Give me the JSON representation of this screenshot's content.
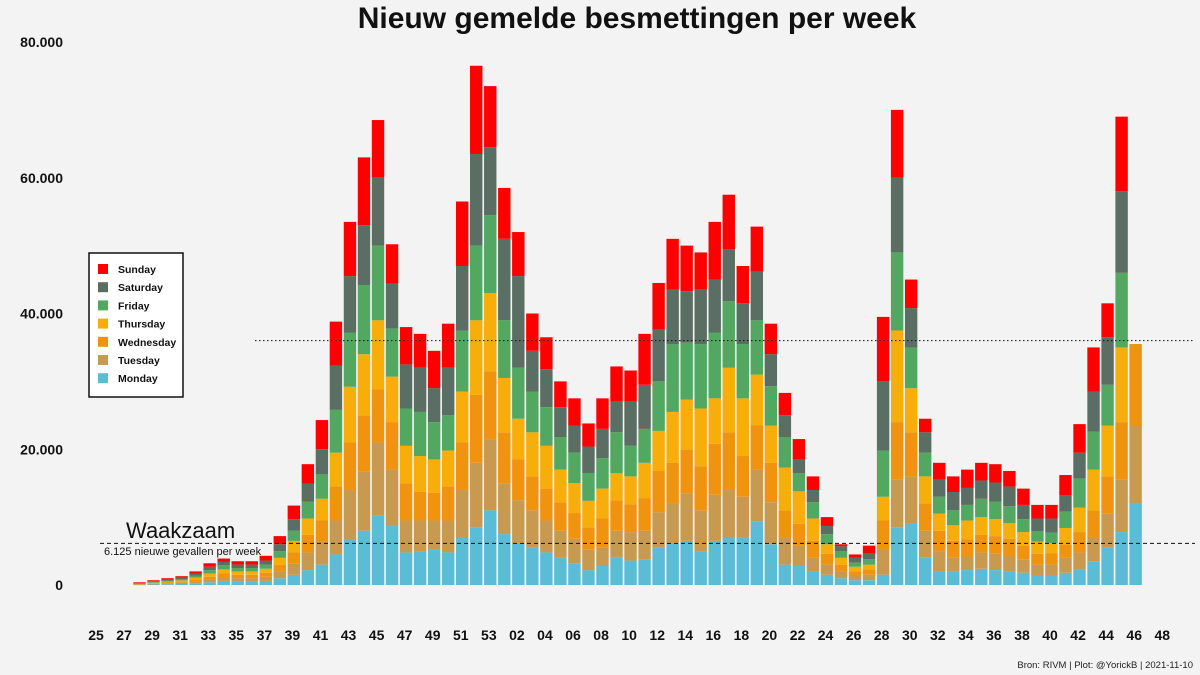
{
  "chart_data": {
    "type": "bar",
    "stacked": true,
    "title": "Nieuw gemelde besmettingen per week",
    "y_ticks": [
      {
        "value": 0,
        "label": "0"
      },
      {
        "value": 20000,
        "label": "20.000"
      },
      {
        "value": 40000,
        "label": "40.000"
      },
      {
        "value": 60000,
        "label": "60.000"
      },
      {
        "value": 80000,
        "label": "80.000"
      }
    ],
    "ylim": [
      0,
      80000
    ],
    "x_tick_labels": [
      "25",
      "27",
      "29",
      "31",
      "33",
      "35",
      "37",
      "39",
      "41",
      "43",
      "45",
      "47",
      "49",
      "51",
      "53",
      "02",
      "04",
      "06",
      "08",
      "10",
      "12",
      "14",
      "16",
      "18",
      "20",
      "22",
      "24",
      "26",
      "28",
      "30",
      "32",
      "34",
      "36",
      "38",
      "40",
      "42",
      "44",
      "46",
      "48"
    ],
    "bar_count": 75,
    "series_colors": {
      "Monday": "#5bbcd6",
      "Tuesday": "#c89a50",
      "Wednesday": "#f0930e",
      "Thursday": "#f7ad0a",
      "Friday": "#52a861",
      "Saturday": "#5b6e63",
      "Sunday": "#ff0000"
    },
    "legend": {
      "position": "left",
      "entries": [
        "Sunday",
        "Saturday",
        "Friday",
        "Thursday",
        "Wednesday",
        "Tuesday",
        "Monday"
      ]
    },
    "bars": [
      {
        "x": "27",
        "cum": [
          50,
          100,
          150,
          200,
          250,
          300,
          400
        ]
      },
      {
        "x": "28",
        "cum": [
          80,
          160,
          250,
          340,
          450,
          560,
          700
        ]
      },
      {
        "x": "29",
        "cum": [
          120,
          250,
          380,
          520,
          670,
          820,
          1000
        ]
      },
      {
        "x": "30",
        "cum": [
          150,
          320,
          500,
          680,
          880,
          1080,
          1300
        ]
      },
      {
        "x": "31",
        "cum": [
          250,
          500,
          800,
          1100,
          1400,
          1700,
          2000
        ]
      },
      {
        "x": "32",
        "cum": [
          400,
          800,
          1200,
          1700,
          2200,
          2700,
          3200
        ]
      },
      {
        "x": "33",
        "cum": [
          600,
          1100,
          1700,
          2300,
          2900,
          3400,
          3900
        ]
      },
      {
        "x": "34",
        "cum": [
          500,
          1000,
          1500,
          2000,
          2500,
          3000,
          3500
        ]
      },
      {
        "x": "35",
        "cum": [
          500,
          1000,
          1500,
          2000,
          2500,
          3000,
          3500
        ]
      },
      {
        "x": "36",
        "cum": [
          600,
          1200,
          1800,
          2400,
          3000,
          3600,
          4300
        ]
      },
      {
        "x": "37",
        "cum": [
          1000,
          2000,
          3000,
          4000,
          5000,
          6000,
          7200
        ]
      },
      {
        "x": "38",
        "cum": [
          1500,
          3200,
          4800,
          6500,
          8000,
          9700,
          11700
        ]
      },
      {
        "x": "39",
        "cum": [
          2200,
          4800,
          7400,
          9800,
          12300,
          14900,
          17800
        ]
      },
      {
        "x": "40",
        "cum": [
          3000,
          6400,
          9500,
          12700,
          16300,
          20000,
          24300
        ]
      },
      {
        "x": "41",
        "cum": [
          4500,
          9500,
          14500,
          19500,
          25800,
          32300,
          38800
        ]
      },
      {
        "x": "42",
        "cum": [
          6700,
          14000,
          21000,
          29200,
          37200,
          45500,
          53500
        ]
      },
      {
        "x": "43",
        "cum": [
          8000,
          16700,
          25000,
          34000,
          44200,
          53000,
          63000
        ]
      },
      {
        "x": "44",
        "cum": [
          10300,
          21000,
          28800,
          39000,
          50000,
          60000,
          68500
        ]
      },
      {
        "x": "45",
        "cum": [
          8700,
          17000,
          24000,
          30700,
          37800,
          44400,
          50200
        ]
      },
      {
        "x": "46",
        "cum": [
          4800,
          9500,
          15000,
          20500,
          26000,
          32500,
          38000
        ]
      },
      {
        "x": "47",
        "cum": [
          5000,
          9500,
          13700,
          19000,
          25500,
          32000,
          37000
        ]
      },
      {
        "x": "48",
        "cum": [
          5300,
          9500,
          13600,
          18500,
          24000,
          29000,
          34500
        ]
      },
      {
        "x": "49",
        "cum": [
          4800,
          9500,
          14500,
          19800,
          25000,
          32000,
          38500
        ]
      },
      {
        "x": "50",
        "cum": [
          7000,
          14000,
          21000,
          28500,
          37500,
          47000,
          56500
        ]
      },
      {
        "x": "51",
        "cum": [
          8500,
          18000,
          28000,
          39000,
          50000,
          63500,
          76500
        ]
      },
      {
        "x": "52",
        "cum": [
          11000,
          21500,
          31500,
          43000,
          54500,
          64500,
          73500
        ]
      },
      {
        "x": "53",
        "cum": [
          7500,
          15000,
          22500,
          30500,
          39000,
          51000,
          58500
        ]
      },
      {
        "x": "01",
        "cum": [
          6200,
          12500,
          18500,
          24500,
          32000,
          45500,
          52000
        ]
      },
      {
        "x": "02",
        "cum": [
          5500,
          11000,
          16000,
          22500,
          28500,
          34500,
          40000
        ]
      },
      {
        "x": "03",
        "cum": [
          4800,
          9500,
          14200,
          20500,
          26200,
          31800,
          36500
        ]
      },
      {
        "x": "04",
        "cum": [
          4000,
          8000,
          12200,
          17000,
          21800,
          26200,
          30000
        ]
      },
      {
        "x": "05",
        "cum": [
          3200,
          6800,
          10600,
          15000,
          19500,
          23500,
          27500
        ]
      },
      {
        "x": "06",
        "cum": [
          2200,
          5200,
          8500,
          12400,
          16500,
          20400,
          23800
        ]
      },
      {
        "x": "07",
        "cum": [
          2800,
          5500,
          9800,
          14200,
          18700,
          23000,
          27500
        ]
      },
      {
        "x": "08",
        "cum": [
          4000,
          8000,
          12500,
          16500,
          22500,
          27000,
          32200
        ]
      },
      {
        "x": "09",
        "cum": [
          3600,
          7800,
          11900,
          16000,
          20500,
          27000,
          31600
        ]
      },
      {
        "x": "10",
        "cum": [
          3800,
          8000,
          12800,
          18000,
          23000,
          29500,
          37000
        ]
      },
      {
        "x": "11",
        "cum": [
          5500,
          10700,
          16800,
          22700,
          30000,
          37600,
          44500
        ]
      },
      {
        "x": "12",
        "cum": [
          6200,
          12000,
          18000,
          25500,
          35500,
          43500,
          51000
        ]
      },
      {
        "x": "13",
        "cum": [
          6500,
          13500,
          20000,
          27300,
          35700,
          43300,
          50000
        ]
      },
      {
        "x": "14",
        "cum": [
          5000,
          11000,
          17500,
          26000,
          35500,
          43500,
          49000
        ]
      },
      {
        "x": "15",
        "cum": [
          6500,
          13300,
          20800,
          27500,
          37200,
          45000,
          53500
        ]
      },
      {
        "x": "16",
        "cum": [
          7000,
          14000,
          22500,
          32000,
          41800,
          49500,
          57500
        ]
      },
      {
        "x": "17",
        "cum": [
          7000,
          13000,
          19000,
          27500,
          35500,
          41500,
          47000
        ]
      },
      {
        "x": "18",
        "cum": [
          9300,
          17000,
          23500,
          31000,
          39000,
          46200,
          52800
        ]
      },
      {
        "x": "19",
        "cum": [
          6000,
          12200,
          18000,
          23500,
          29300,
          34000,
          38500
        ]
      },
      {
        "x": "20",
        "cum": [
          3000,
          7000,
          11000,
          17300,
          21800,
          25000,
          28300
        ]
      },
      {
        "x": "21",
        "cum": [
          2800,
          5800,
          9000,
          13800,
          16500,
          18500,
          21500
        ]
      },
      {
        "x": "22",
        "cum": [
          2000,
          4000,
          6500,
          9800,
          12200,
          14000,
          16000
        ]
      },
      {
        "x": "23",
        "cum": [
          1500,
          3000,
          4600,
          6000,
          7500,
          8700,
          10000
        ]
      },
      {
        "x": "24",
        "cum": [
          1000,
          2000,
          3000,
          4000,
          5000,
          5700,
          6000
        ]
      },
      {
        "x": "25",
        "cum": [
          700,
          1400,
          2000,
          2700,
          3300,
          4000,
          4500
        ]
      },
      {
        "x": "26",
        "cum": [
          700,
          1500,
          2300,
          3000,
          3800,
          4600,
          5800
        ]
      },
      {
        "x": "27",
        "cum": [
          1500,
          5300,
          9500,
          13000,
          19800,
          30000,
          39500
        ]
      },
      {
        "x": "28",
        "cum": [
          8500,
          15500,
          24000,
          37500,
          49000,
          60000,
          70000
        ]
      },
      {
        "x": "29",
        "cum": [
          9000,
          16000,
          22500,
          29000,
          35000,
          40800,
          45000
        ]
      },
      {
        "x": "30",
        "cum": [
          4000,
          8000,
          12000,
          16000,
          19500,
          22500,
          24500
        ]
      },
      {
        "x": "31",
        "cum": [
          2000,
          5000,
          8000,
          10500,
          13000,
          15500,
          18000
        ]
      },
      {
        "x": "32",
        "cum": [
          2000,
          4000,
          6500,
          8800,
          11000,
          13700,
          16000
        ]
      },
      {
        "x": "33",
        "cum": [
          2200,
          4200,
          6700,
          9500,
          11800,
          14300,
          17000
        ]
      },
      {
        "x": "34",
        "cum": [
          2400,
          4800,
          7400,
          10000,
          12700,
          15400,
          18000
        ]
      },
      {
        "x": "35",
        "cum": [
          2200,
          4600,
          7200,
          9700,
          12300,
          15100,
          17800
        ]
      },
      {
        "x": "36",
        "cum": [
          2000,
          4200,
          6800,
          9100,
          11600,
          14500,
          16800
        ]
      },
      {
        "x": "37",
        "cum": [
          1800,
          3800,
          5800,
          7800,
          9700,
          11800,
          14200
        ]
      },
      {
        "x": "38",
        "cum": [
          1400,
          3000,
          4600,
          6400,
          7900,
          9800,
          11800
        ]
      },
      {
        "x": "39",
        "cum": [
          1400,
          3000,
          4700,
          6200,
          7700,
          9800,
          11800
        ]
      },
      {
        "x": "40",
        "cum": [
          1800,
          4000,
          6000,
          8400,
          10800,
          13200,
          16200
        ]
      },
      {
        "x": "41",
        "cum": [
          2300,
          4800,
          7800,
          11400,
          15700,
          19500,
          23700
        ]
      },
      {
        "x": "42",
        "cum": [
          3500,
          7000,
          11000,
          17000,
          22600,
          28500,
          35000
        ]
      },
      {
        "x": "43",
        "cum": [
          5500,
          10500,
          16000,
          23500,
          29500,
          36500,
          41500
        ]
      },
      {
        "x": "44",
        "cum": [
          7800,
          15500,
          24000,
          35000,
          46000,
          58000,
          69000
        ]
      },
      {
        "x": "45",
        "cum": [
          12000,
          23500,
          35500,
          35500,
          35500,
          35500,
          35500
        ]
      }
    ],
    "reference_lines": [
      {
        "value": 6125,
        "style": "dashed",
        "label": "Waakzaam",
        "sublabel": "6.125 nieuwe gevallen per week"
      },
      {
        "value": 36000,
        "style": "dotted"
      }
    ],
    "credit": "Bron: RIVM | Plot: @YorickB |  2021-11-10"
  }
}
